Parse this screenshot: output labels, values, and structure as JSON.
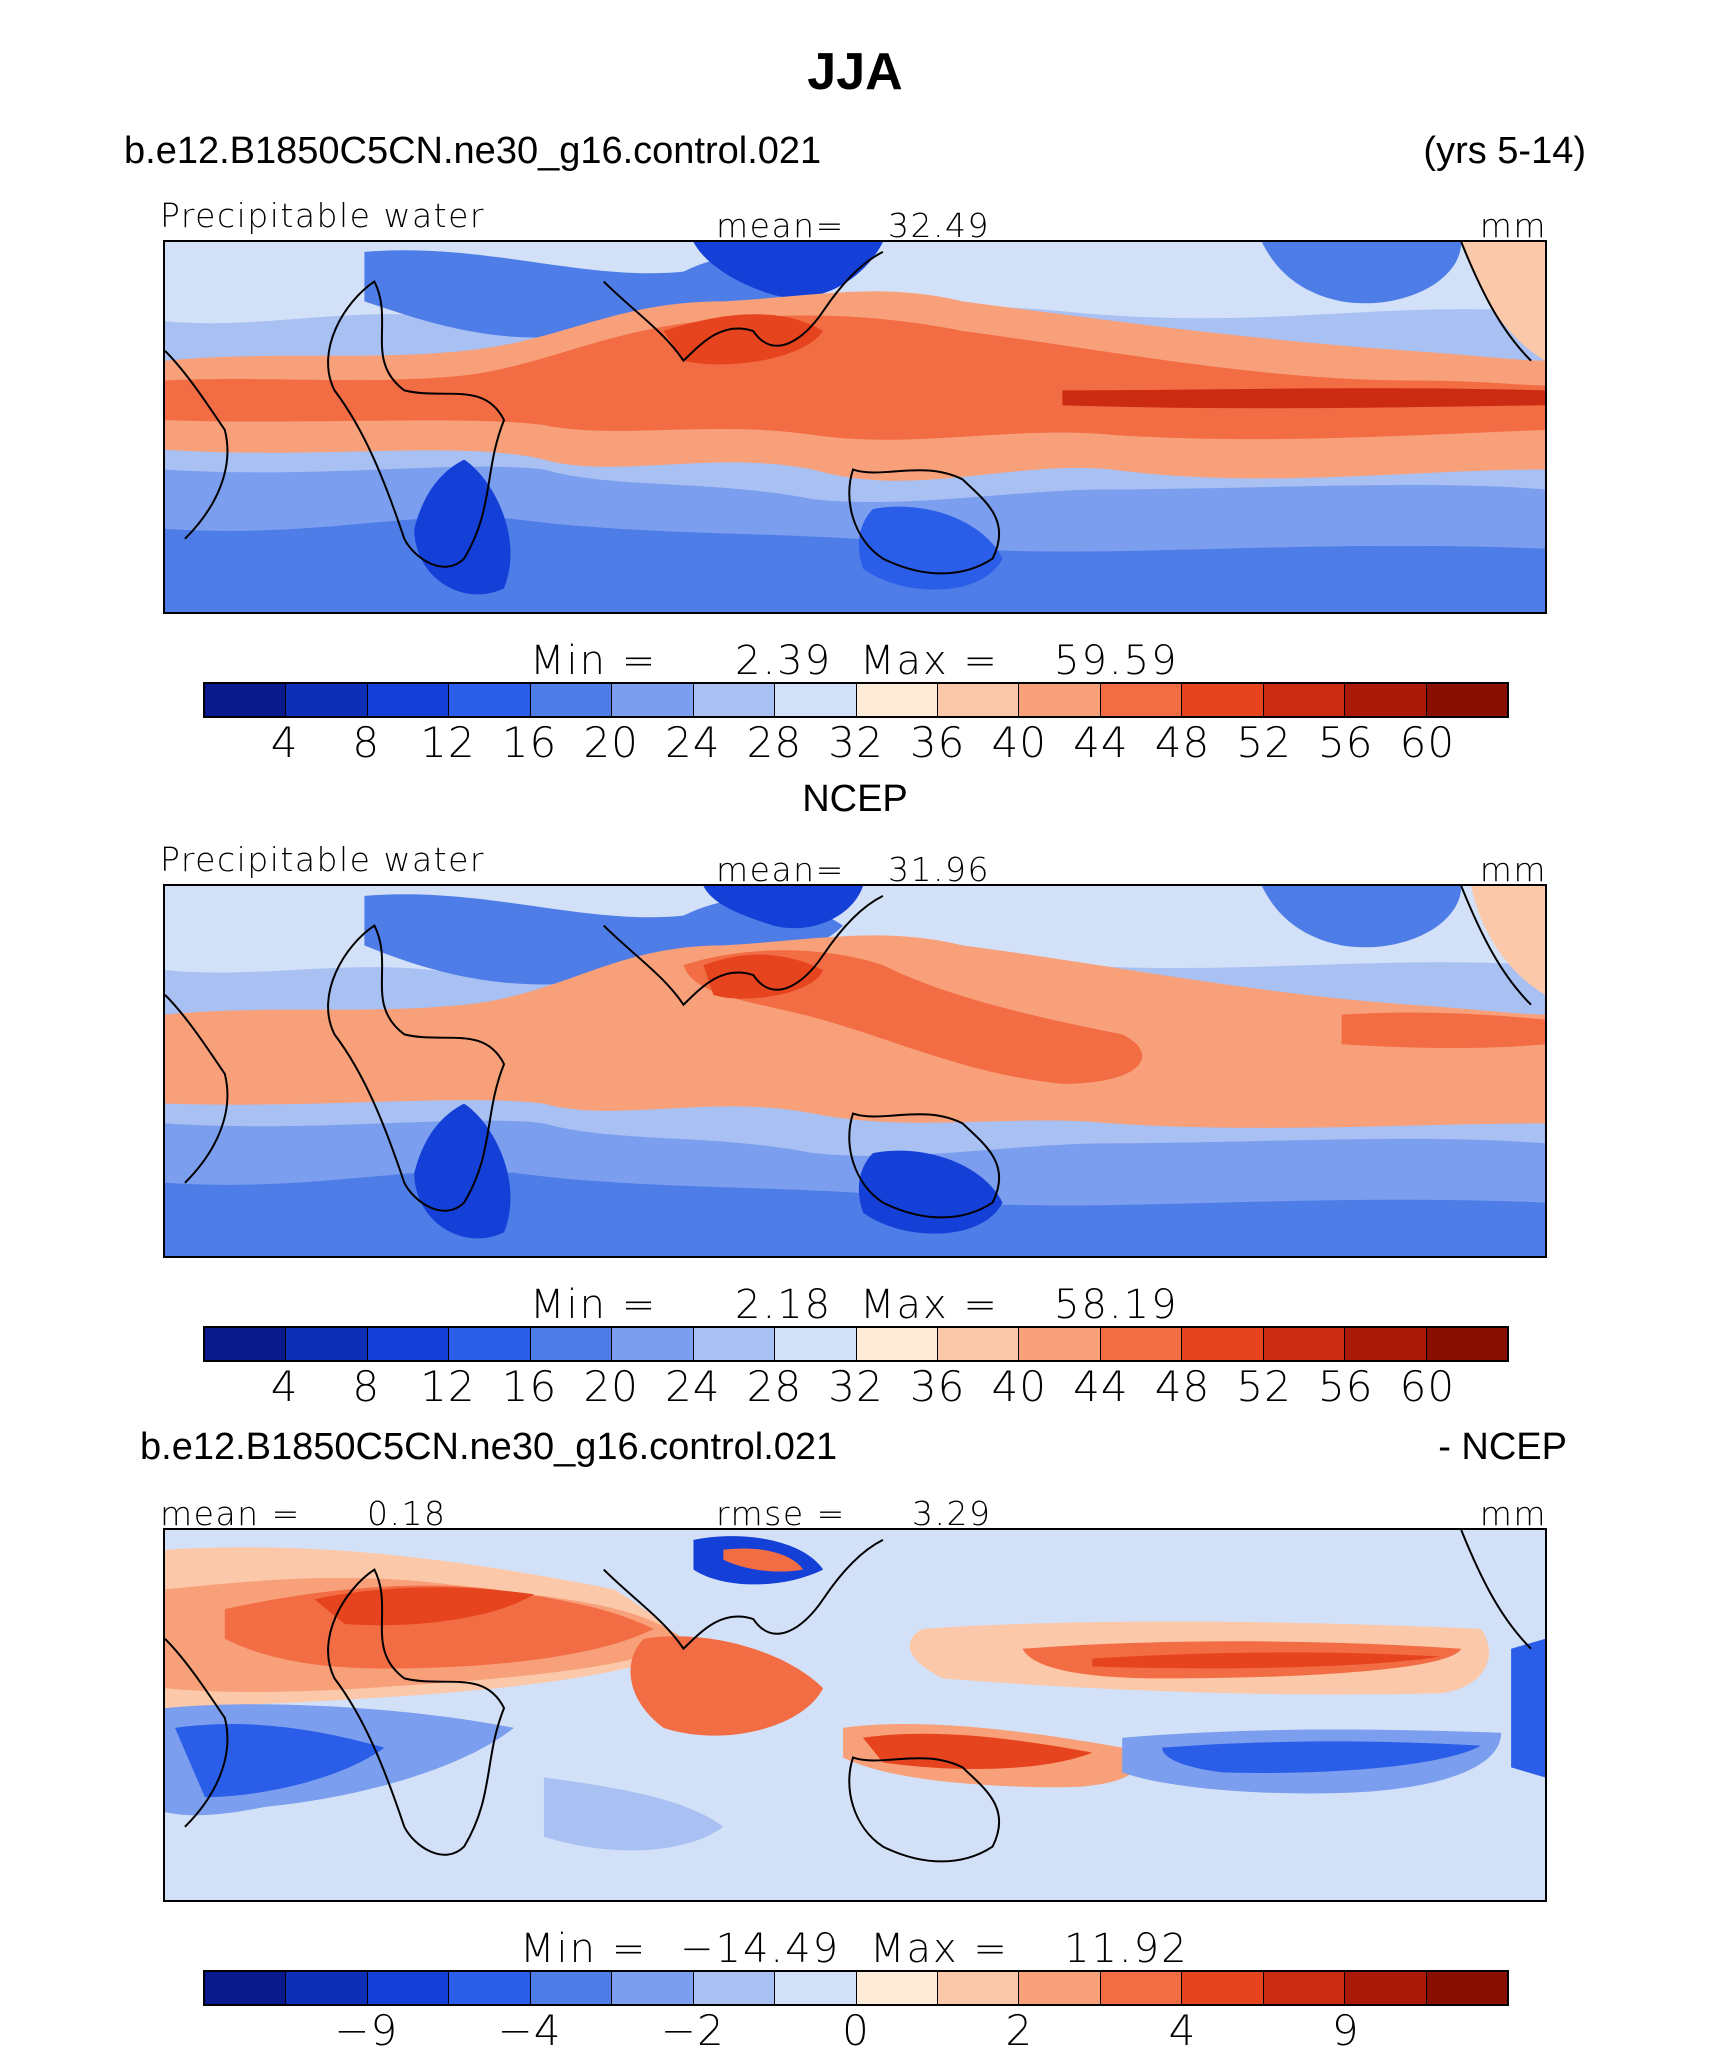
{
  "title": "JJA",
  "colors": [
    "#0a1a8c",
    "#0d2fb8",
    "#1440d8",
    "#2b5ee8",
    "#4f7de8",
    "#7c9eee",
    "#a9c0f2",
    "#d3e1f8",
    "#fdebd7",
    "#fbc8a9",
    "#f8a079",
    "#f26c44",
    "#e6441e",
    "#cb2b10",
    "#ab1a08",
    "#8a0f03"
  ],
  "panels": [
    {
      "case_left": "b.e12.B1850C5CN.ne30_g16.control.021",
      "case_right": "(yrs 5-14)",
      "variable": "Precipitable water",
      "mean_label": "mean=",
      "mean_value": "32.49",
      "units": "mm",
      "min_label": "Min  =",
      "min_value": "2.39",
      "max_label": "Max  =",
      "max_value": "59.59",
      "ticks": [
        "4",
        "8",
        "12",
        "16",
        "20",
        "24",
        "28",
        "32",
        "36",
        "40",
        "44",
        "48",
        "52",
        "56",
        "60"
      ]
    },
    {
      "header": "NCEP",
      "variable": "Precipitable water",
      "mean_label": "mean=",
      "mean_value": "31.96",
      "units": "mm",
      "min_label": "Min  =",
      "min_value": "2.18",
      "max_label": "Max  =",
      "max_value": "58.19",
      "ticks": [
        "4",
        "8",
        "12",
        "16",
        "20",
        "24",
        "28",
        "32",
        "36",
        "40",
        "44",
        "48",
        "52",
        "56",
        "60"
      ]
    },
    {
      "case_left": "b.e12.B1850C5CN.ne30_g16.control.021",
      "case_right": "- NCEP",
      "mean_label": "mean =",
      "mean_value": "0.18",
      "rmse_label": "rmse  =",
      "rmse_value": "3.29",
      "units": "mm",
      "min_label": "Min  =",
      "min_value": "−14.49",
      "max_label": "Max  =",
      "max_value": "11.92",
      "ticks": [
        "−9",
        "−4",
        "−2",
        "0",
        "2",
        "4",
        "9"
      ]
    }
  ]
}
